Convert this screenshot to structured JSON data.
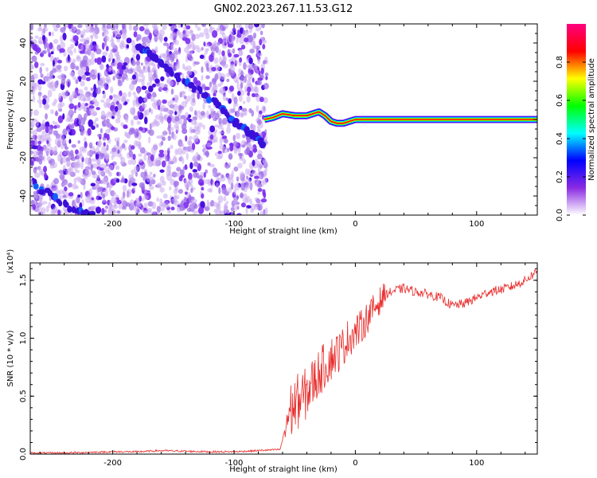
{
  "title": "GN02.2023.267.11.53.G12",
  "chart_data": [
    {
      "type": "heatmap",
      "xlabel": "Height of straight line (km)",
      "ylabel": "Frequency (Hz)",
      "xlim": [
        -268,
        150
      ],
      "ylim": [
        -50,
        50
      ],
      "x_ticks": [
        -200,
        -100,
        0,
        100
      ],
      "x_tick_labels": [
        "-200",
        "-100",
        "0",
        "100"
      ],
      "y_ticks": [
        -40,
        -20,
        0,
        20,
        40
      ],
      "y_tick_labels": [
        "-40",
        "-20",
        "0",
        "20",
        "40"
      ],
      "colorbar": {
        "label": "Normalized spectral amplitude",
        "range": [
          0,
          1
        ],
        "ticks": [
          0,
          0.2,
          0.4,
          0.6,
          0.8
        ],
        "tick_labels": [
          "0.0",
          "0.2",
          "0.4",
          "0.6",
          "0.8"
        ],
        "colormap": [
          "#ffffff",
          "#8a2be2",
          "#0000ff",
          "#00ffff",
          "#00ff00",
          "#ffff00",
          "#ff0000",
          "#ff0080"
        ]
      },
      "noise_region": {
        "x": [
          -268,
          -73
        ],
        "y": [
          -50,
          50
        ]
      },
      "diagonal_trace": [
        [
          -265,
          -34
        ],
        [
          -230,
          -48
        ],
        [
          -215,
          -50
        ],
        [
          -180,
          39
        ],
        [
          -165,
          32
        ],
        [
          -150,
          24
        ],
        [
          -115,
          9
        ],
        [
          -100,
          -1
        ],
        [
          -85,
          -8
        ],
        [
          -75,
          -13
        ]
      ],
      "carrier_trace": [
        [
          -75,
          0
        ],
        [
          -68,
          1
        ],
        [
          -60,
          3
        ],
        [
          -50,
          2
        ],
        [
          -40,
          2
        ],
        [
          -30,
          4
        ],
        [
          -25,
          2
        ],
        [
          -20,
          -1
        ],
        [
          -15,
          -2
        ],
        [
          -10,
          -2
        ],
        [
          0,
          0
        ],
        [
          50,
          0
        ],
        [
          100,
          0
        ],
        [
          150,
          0
        ]
      ],
      "grid": false
    },
    {
      "type": "line",
      "xlabel": "Height of straight line (km)",
      "ylabel": "SNR (10 * v/v)",
      "multiplier": "(x10⁴)",
      "xlim": [
        -268,
        150
      ],
      "ylim": [
        0,
        1.65
      ],
      "x_ticks": [
        -200,
        -100,
        0,
        100
      ],
      "x_tick_labels": [
        "-200",
        "-100",
        "0",
        "100"
      ],
      "y_ticks": [
        0,
        0.5,
        1.0,
        1.5
      ],
      "y_tick_labels": [
        "0.0",
        "0.5",
        "1.0",
        "1.5"
      ],
      "color": "#e8302f",
      "series": [
        {
          "x": [
            -268,
            -240,
            -220,
            -200,
            -180,
            -160,
            -140,
            -120,
            -100,
            -80,
            -62,
            -55,
            -48,
            -42,
            -36,
            -30,
            -24,
            -18,
            -12,
            -6,
            0,
            5,
            10,
            15,
            20,
            25,
            30,
            35,
            40,
            50,
            60,
            70,
            80,
            90,
            100,
            110,
            120,
            130,
            140,
            150
          ],
          "y": [
            0.01,
            0.01,
            0.015,
            0.02,
            0.02,
            0.03,
            0.025,
            0.02,
            0.02,
            0.03,
            0.04,
            0.35,
            0.45,
            0.5,
            0.6,
            0.7,
            0.78,
            0.85,
            0.9,
            1.0,
            1.05,
            1.1,
            1.18,
            1.25,
            1.32,
            1.38,
            1.4,
            1.42,
            1.43,
            1.4,
            1.38,
            1.35,
            1.28,
            1.3,
            1.35,
            1.4,
            1.42,
            1.45,
            1.5,
            1.58
          ]
        }
      ],
      "grid": false
    }
  ]
}
